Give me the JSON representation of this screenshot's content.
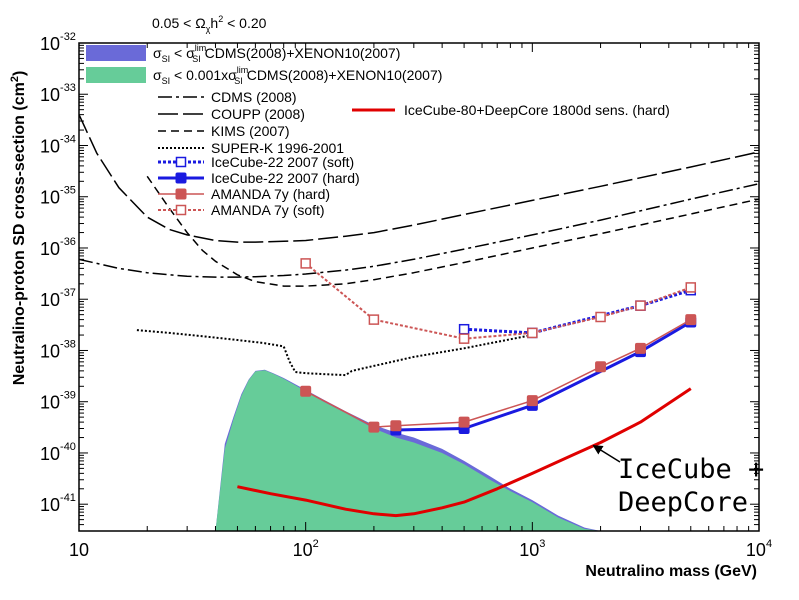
{
  "chart_data": {
    "type": "line",
    "title": "0.05 < Ω_χh² < 0.20",
    "title_parts": {
      "a": "0.05 < Ω",
      "sub": "χ",
      "b": "h",
      "sup": "2",
      "c": " < 0.20"
    },
    "xlabel": "Neutralino mass (GeV)",
    "ylabel": "Neutralino-proton SD cross-section (cm²)",
    "x_scale": "log",
    "y_scale": "log",
    "xlim": [
      10,
      10000
    ],
    "ylim": [
      3e-42,
      1e-32
    ],
    "x_ticks": [
      {
        "value": 10,
        "label": "10"
      },
      {
        "value": 100,
        "base": "10",
        "exp": "2"
      },
      {
        "value": 1000,
        "base": "10",
        "exp": "3"
      },
      {
        "value": 10000,
        "base": "10",
        "exp": "4"
      }
    ],
    "y_ticks": [
      {
        "value": 1e-41,
        "exp": "-41"
      },
      {
        "value": 1e-40,
        "exp": "-40"
      },
      {
        "value": 1e-39,
        "exp": "-39"
      },
      {
        "value": 1e-38,
        "exp": "-38"
      },
      {
        "value": 1e-37,
        "exp": "-37"
      },
      {
        "value": 1e-36,
        "exp": "-36"
      },
      {
        "value": 1e-35,
        "exp": "-35"
      },
      {
        "value": 1e-34,
        "exp": "-34"
      },
      {
        "value": 1e-33,
        "exp": "-33"
      },
      {
        "value": 1e-32,
        "exp": "-32"
      }
    ],
    "regions": [
      {
        "name": "σSI < σSI_lim CDMS(2008)+XENON10(2007)",
        "color": "#6a6ad8",
        "x": [
          40,
          44,
          48,
          52,
          56,
          60,
          66,
          72,
          80,
          90,
          100,
          120,
          150,
          200,
          250,
          300,
          400,
          500,
          650,
          800,
          1000,
          1300,
          1700,
          2000
        ],
        "low": [
          3e-42,
          3e-42,
          3e-42,
          3e-42,
          3e-42,
          3e-42,
          3e-42,
          3e-42,
          3e-42,
          3e-42,
          3e-42,
          3e-42,
          3e-42,
          3e-42,
          3e-42,
          3e-42,
          3e-42,
          3e-42,
          3e-42,
          3e-42,
          3e-42,
          3e-42,
          3e-42,
          3e-42
        ],
        "high": [
          3e-42,
          1.5e-40,
          5e-40,
          1.4e-39,
          2.7e-39,
          4e-39,
          4.2e-39,
          3.6e-39,
          2.9e-39,
          2.2e-39,
          1.7e-39,
          1.1e-39,
          6.5e-40,
          3.5e-40,
          2.5e-40,
          2e-40,
          1.2e-40,
          7e-41,
          3.5e-41,
          2e-41,
          1.2e-41,
          6e-42,
          3.5e-42,
          3e-42
        ]
      },
      {
        "name": "σSI < 0.001xσSI_lim CDMS(2008)+XENON10(2007)",
        "color": "#66cc99",
        "x": [
          40,
          44,
          48,
          52,
          56,
          60,
          66,
          72,
          80,
          90,
          100,
          120,
          150,
          200,
          250,
          300,
          400,
          500,
          650,
          800,
          1000,
          1300,
          1700,
          2000
        ],
        "low": [
          3e-42,
          3e-42,
          3e-42,
          3e-42,
          3e-42,
          3e-42,
          3e-42,
          3e-42,
          3e-42,
          3e-42,
          3e-42,
          3e-42,
          3e-42,
          3e-42,
          3e-42,
          3e-42,
          3e-42,
          3e-42,
          3e-42,
          3e-42,
          3e-42,
          3e-42,
          3e-42,
          3e-42
        ],
        "high": [
          3e-42,
          1.2e-40,
          4.5e-40,
          1.3e-39,
          2.6e-39,
          3.9e-39,
          4.1e-39,
          3.5e-39,
          2.8e-39,
          2.1e-39,
          1.6e-39,
          1e-39,
          6e-40,
          3e-40,
          2e-40,
          1.6e-40,
          1e-40,
          6e-41,
          3e-41,
          1.8e-41,
          1.1e-41,
          5.5e-42,
          3.3e-42,
          3e-42
        ]
      }
    ],
    "series": [
      {
        "name": "CDMS (2008)",
        "color": "#000000",
        "dash": "14 4 3 4",
        "width": 1.5,
        "marker": "none",
        "x": [
          10,
          12,
          15,
          20,
          25,
          30,
          40,
          50,
          60,
          80,
          100,
          150,
          200,
          300,
          500,
          1000,
          2000,
          5000,
          10000
        ],
        "y": [
          6e-37,
          5e-37,
          4e-37,
          3.3e-37,
          3e-37,
          2.8e-37,
          2.7e-37,
          2.7e-37,
          2.75e-37,
          2.9e-37,
          3.1e-37,
          3.7e-37,
          4.4e-37,
          6e-37,
          9.5e-37,
          1.8e-36,
          3.5e-36,
          9e-36,
          1.8e-35
        ]
      },
      {
        "name": "COUPP (2008)",
        "color": "#000000",
        "dash": "20 5",
        "width": 1.5,
        "marker": "none",
        "x": [
          10,
          12,
          15,
          20,
          25,
          30,
          40,
          50,
          60,
          80,
          100,
          150,
          200,
          300,
          500,
          1000,
          2000,
          5000,
          10000
        ],
        "y": [
          4e-34,
          7e-35,
          1.5e-35,
          4e-36,
          2.3e-36,
          1.8e-36,
          1.4e-36,
          1.3e-36,
          1.3e-36,
          1.35e-36,
          1.4e-36,
          1.7e-36,
          2e-36,
          2.8e-36,
          4.5e-36,
          8.5e-36,
          1.6e-35,
          3.8e-35,
          7.5e-35
        ]
      },
      {
        "name": "KIMS (2007)",
        "color": "#000000",
        "dash": "8 5",
        "width": 1.5,
        "marker": "none",
        "x": [
          20,
          25,
          30,
          35,
          40,
          50,
          60,
          80,
          100,
          150,
          200,
          300,
          500,
          1000,
          2000,
          5000,
          10000
        ],
        "y": [
          2.5e-35,
          6e-36,
          2e-36,
          9e-37,
          5.5e-37,
          3e-37,
          2.2e-37,
          1.8e-37,
          1.8e-37,
          2e-37,
          2.4e-37,
          3.3e-37,
          5.2e-37,
          1e-36,
          1.9e-36,
          4.6e-36,
          9e-36
        ]
      },
      {
        "name": "SUPER-K 1996-2001",
        "color": "#000000",
        "dash": "2 2",
        "width": 2,
        "marker": "none",
        "x": [
          18,
          25,
          35,
          50,
          65,
          80,
          85,
          90,
          100,
          130,
          150,
          160,
          200,
          300,
          500,
          1000
        ],
        "y": [
          2.5e-38,
          2.2e-38,
          1.9e-38,
          1.6e-38,
          1.4e-38,
          1.2e-38,
          6e-39,
          3.8e-39,
          3.6e-39,
          3.4e-39,
          3.3e-39,
          4e-39,
          5e-39,
          7.5e-39,
          1.1e-38,
          2e-38
        ]
      },
      {
        "name": "IceCube-22 2007 (soft)",
        "color": "#1a1ae0",
        "dash": "3 2",
        "width": 3,
        "marker": "open-square",
        "x": [
          500,
          1000,
          3000,
          5000
        ],
        "y": [
          2.6e-38,
          2.2e-38,
          7.5e-38,
          1.5e-37
        ]
      },
      {
        "name": "IceCube-22 2007 (hard)",
        "color": "#1a1ae0",
        "dash": "",
        "width": 3,
        "marker": "filled-square",
        "x": [
          250,
          500,
          1000,
          3000,
          5000
        ],
        "y": [
          2.8e-40,
          3e-40,
          8.5e-40,
          9.5e-39,
          3.6e-38
        ]
      },
      {
        "name": "AMANDA 7y (hard)",
        "color": "#cc5555",
        "dash": "",
        "width": 1.5,
        "marker": "filled-square",
        "x": [
          100,
          200,
          250,
          500,
          1000,
          2000,
          3000,
          5000
        ],
        "y": [
          1.6e-39,
          3.2e-40,
          3.4e-40,
          4e-40,
          1.05e-39,
          4.8e-39,
          1.1e-38,
          4e-38
        ]
      },
      {
        "name": "AMANDA 7y (soft)",
        "color": "#cc5555",
        "dash": "3 2",
        "width": 2,
        "marker": "open-square",
        "x": [
          100,
          200,
          500,
          1000,
          2000,
          3000,
          5000
        ],
        "y": [
          5e-37,
          4e-38,
          1.7e-38,
          2.2e-38,
          4.5e-38,
          7.5e-38,
          1.7e-37
        ]
      },
      {
        "name": "IceCube-80+DeepCore 1800d sens. (hard)",
        "color": "#e00000",
        "dash": "",
        "width": 3,
        "marker": "none",
        "x": [
          50,
          70,
          100,
          150,
          200,
          250,
          300,
          400,
          500,
          700,
          1000,
          1500,
          2000,
          3000,
          5000
        ],
        "y": [
          2.2e-41,
          1.6e-41,
          1.2e-41,
          8e-42,
          6.5e-42,
          6e-42,
          6.5e-42,
          8.5e-42,
          1.1e-41,
          2e-41,
          4e-41,
          9e-41,
          1.6e-40,
          4e-40,
          1.8e-39
        ]
      }
    ],
    "legend": [
      {
        "kind": "patch",
        "color": "#6a6ad8",
        "pre": "σ",
        "pre_sub": "SI",
        "mid": " < σ",
        "mid_sup": "lim",
        "mid_sub": "SI",
        "text": " CDMS(2008)+XENON10(2007)"
      },
      {
        "kind": "patch",
        "color": "#66cc99",
        "pre": "σ",
        "pre_sub": "SI",
        "mid": " < 0.001xσ",
        "mid_sup": "lim",
        "mid_sub": "SI",
        "text": " CDMS(2008)+XENON10(2007)"
      },
      {
        "kind": "line",
        "series": 0,
        "text": "CDMS (2008)"
      },
      {
        "kind": "line",
        "series": 1,
        "text": "COUPP (2008)"
      },
      {
        "kind": "line",
        "series": 2,
        "text": "KIMS (2007)"
      },
      {
        "kind": "line",
        "series": 3,
        "text": "SUPER-K 1996-2001"
      },
      {
        "kind": "line",
        "series": 4,
        "text": "IceCube-22 2007 (soft)"
      },
      {
        "kind": "line",
        "series": 5,
        "text": "IceCube-22 2007 (hard)"
      },
      {
        "kind": "line",
        "series": 6,
        "text": "AMANDA 7y (hard)"
      },
      {
        "kind": "line",
        "series": 7,
        "text": "AMANDA 7y (soft)"
      },
      {
        "kind": "line",
        "series": 8,
        "text": "IceCube-80+DeepCore 1800d sens. (hard)"
      }
    ],
    "legend_placement": "top-left inside plot, last entry top-right",
    "grid": false,
    "annotation": {
      "lines": [
        "IceCube +",
        "DeepCore"
      ],
      "arrow_to": {
        "x": 1800,
        "y": 1.25e-40
      },
      "color": "#000000"
    }
  }
}
